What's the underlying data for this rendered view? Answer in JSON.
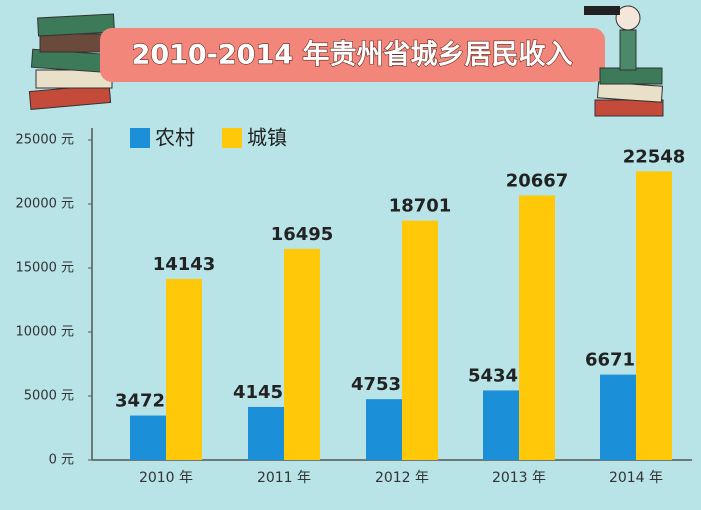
{
  "chart_data": {
    "type": "bar",
    "title": "2010-2014 年贵州省城乡居民收入",
    "categories": [
      "2010 年",
      "2011 年",
      "2012 年",
      "2013 年",
      "2014 年"
    ],
    "series": [
      {
        "name": "农村",
        "color": "#1b8fd8",
        "values": [
          3472,
          4145,
          4753,
          5434,
          6671
        ]
      },
      {
        "name": "城镇",
        "color": "#ffc90a",
        "values": [
          14143,
          16495,
          18701,
          20667,
          22548
        ]
      }
    ],
    "ylim": [
      0,
      25000
    ],
    "yticks": [
      {
        "value": 0,
        "label": "0 元"
      },
      {
        "value": 5000,
        "label": "5000 元"
      },
      {
        "value": 10000,
        "label": "10000 元"
      },
      {
        "value": 15000,
        "label": "15000 元"
      },
      {
        "value": 20000,
        "label": "20000 元"
      },
      {
        "value": 25000,
        "label": "25000 元"
      }
    ],
    "grid": false
  }
}
